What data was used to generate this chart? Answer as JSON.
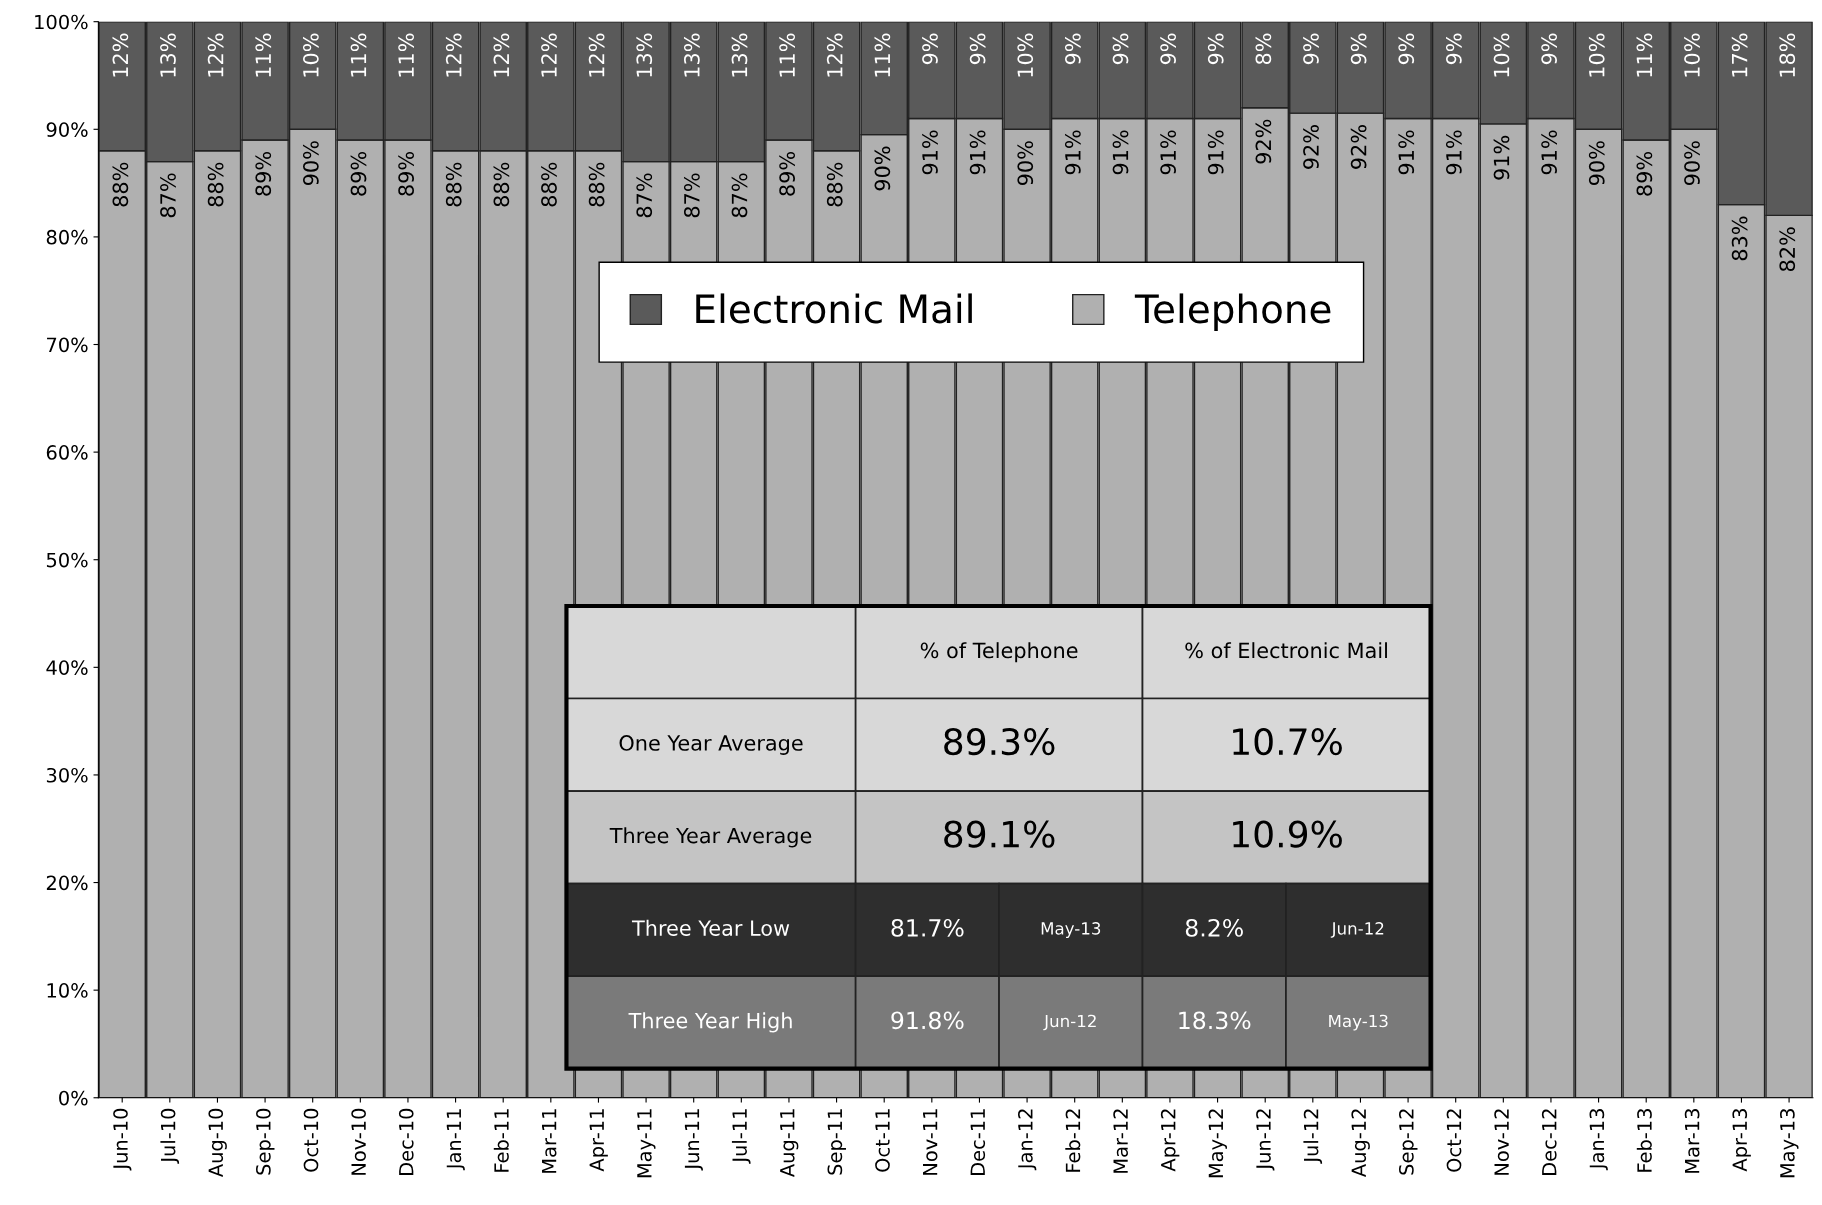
{
  "chart_data": {
    "type": "bar",
    "stacked": true,
    "categories": [
      "Jun-10",
      "Jul-10",
      "Aug-10",
      "Sep-10",
      "Oct-10",
      "Nov-10",
      "Dec-10",
      "Jan-11",
      "Feb-11",
      "Mar-11",
      "Apr-11",
      "May-11",
      "Jun-11",
      "Jul-11",
      "Aug-11",
      "Sep-11",
      "Oct-11",
      "Nov-11",
      "Dec-11",
      "Jan-12",
      "Feb-12",
      "Mar-12",
      "Apr-12",
      "May-12",
      "Jun-12",
      "Jul-12",
      "Aug-12",
      "Sep-12",
      "Oct-12",
      "Nov-12",
      "Dec-12",
      "Jan-13",
      "Feb-13",
      "Mar-13",
      "Apr-13",
      "May-13"
    ],
    "series": [
      {
        "name": "Telephone",
        "color": "#b0b0b0",
        "values": [
          88,
          87,
          88,
          89,
          90,
          89,
          89,
          88,
          88,
          88,
          88,
          87,
          87,
          87,
          89,
          88,
          89.5,
          91,
          91,
          90,
          91,
          91,
          91,
          91,
          92,
          91.5,
          91.5,
          91,
          91,
          90.5,
          91,
          90,
          89,
          90,
          83,
          82
        ],
        "value_labels": [
          "88%",
          "87%",
          "88%",
          "89%",
          "90%",
          "89%",
          "89%",
          "88%",
          "88%",
          "88%",
          "88%",
          "87%",
          "87%",
          "87%",
          "89%",
          "88%",
          "90%",
          "91%",
          "91%",
          "90%",
          "91%",
          "91%",
          "91%",
          "91%",
          "92%",
          "92%",
          "92%",
          "91%",
          "91%",
          "91%",
          "91%",
          "90%",
          "89%",
          "90%",
          "83%",
          "82%"
        ]
      },
      {
        "name": "Electronic Mail",
        "color": "#5a5a5a",
        "values": [
          12,
          13,
          12,
          11,
          10,
          11,
          11,
          12,
          12,
          12,
          12,
          13,
          13,
          13,
          11,
          12,
          10.5,
          9,
          9,
          10,
          9,
          9,
          9,
          9,
          8,
          8.5,
          8.5,
          9,
          9,
          9.5,
          9,
          10,
          11,
          10,
          17,
          18
        ],
        "value_labels": [
          "12%",
          "13%",
          "12%",
          "11%",
          "10%",
          "11%",
          "11%",
          "12%",
          "12%",
          "12%",
          "12%",
          "13%",
          "13%",
          "13%",
          "11%",
          "12%",
          "11%",
          "9%",
          "9%",
          "10%",
          "9%",
          "9%",
          "9%",
          "9%",
          "8%",
          "9%",
          "9%",
          "9%",
          "9%",
          "10%",
          "9%",
          "10%",
          "11%",
          "10%",
          "17%",
          "18%"
        ]
      }
    ],
    "ylim": [
      0,
      100
    ],
    "yticks": [
      {
        "value": 0,
        "label": "0%"
      },
      {
        "value": 10,
        "label": "10%"
      },
      {
        "value": 20,
        "label": "20%"
      },
      {
        "value": 30,
        "label": "30%"
      },
      {
        "value": 40,
        "label": "40%"
      },
      {
        "value": 50,
        "label": "50%"
      },
      {
        "value": 60,
        "label": "60%"
      },
      {
        "value": 70,
        "label": "70%"
      },
      {
        "value": 80,
        "label": "80%"
      },
      {
        "value": 90,
        "label": "90%"
      },
      {
        "value": 100,
        "label": "100%"
      }
    ],
    "grid": false,
    "legend": "top",
    "annotations": [
      "% of Telephone",
      "% of Electronic Mail",
      "One Year Average",
      "89.3%",
      "10.7%",
      "Three Year Average",
      "89.1%",
      "10.9%",
      "Three Year Low",
      "81.7%",
      "May-13",
      "8.2%",
      "Jun-12",
      "Three Year High",
      "91.8%",
      "Jun-12",
      "18.3%",
      "May-13"
    ]
  }
}
